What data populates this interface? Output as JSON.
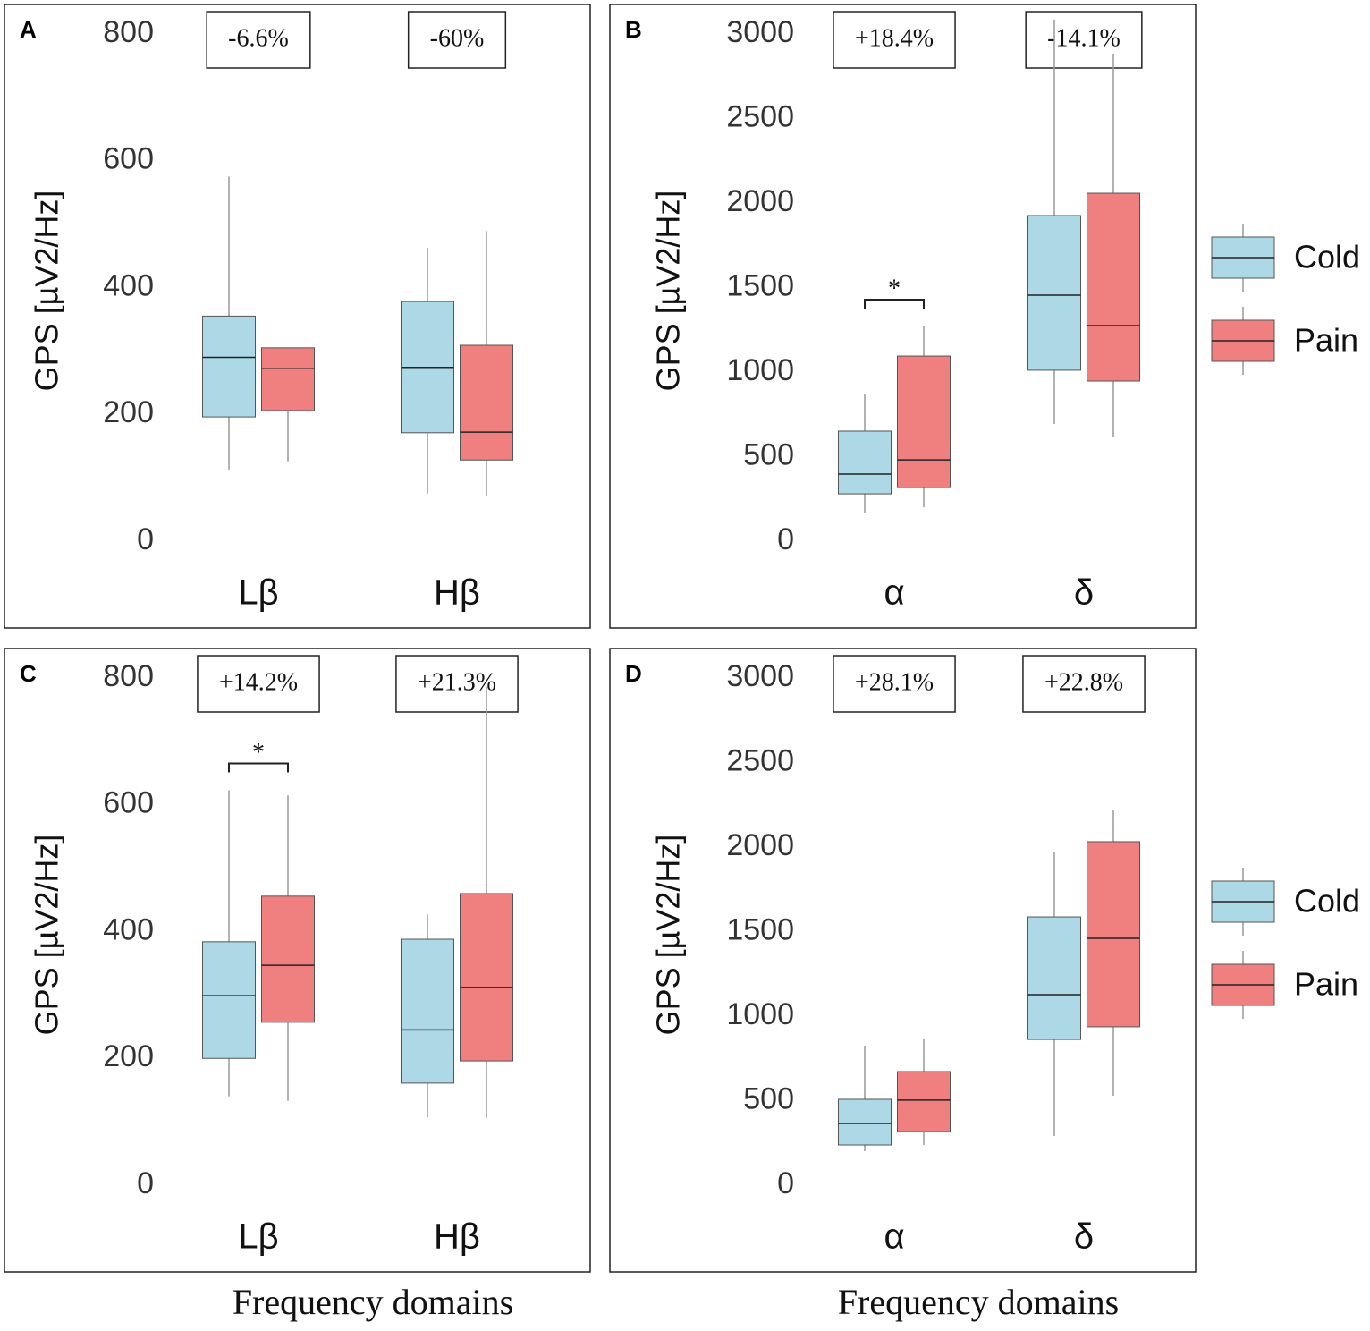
{
  "chart_data": [
    {
      "type": "box",
      "panel": "A",
      "ylabel": "GPS [µV2/Hz]",
      "ylim": [
        0,
        800
      ],
      "yticks": [
        0,
        200,
        400,
        600,
        800
      ],
      "categories": [
        "Lβ",
        "Hβ"
      ],
      "annotations": [
        "-6.6%",
        "-60%"
      ],
      "significance": [
        null,
        null
      ],
      "legend": false,
      "series": [
        {
          "name": "Cold",
          "color": "#add8e6",
          "values": [
            {
              "min": 113,
              "q1": 196,
              "median": 290,
              "q3": 355,
              "max": 575
            },
            {
              "min": 75,
              "q1": 171,
              "median": 274,
              "q3": 378,
              "max": 463
            }
          ]
        },
        {
          "name": "Pain",
          "color": "#f08080",
          "values": [
            {
              "min": 126,
              "q1": 206,
              "median": 272,
              "q3": 305,
              "max": 305
            },
            {
              "min": 72,
              "q1": 128,
              "median": 172,
              "q3": 309,
              "max": 489
            }
          ]
        }
      ]
    },
    {
      "type": "box",
      "panel": "B",
      "ylabel": "GPS [µV2/Hz]",
      "ylim": [
        0,
        3000
      ],
      "yticks": [
        0,
        500,
        1000,
        1500,
        2000,
        2500,
        3000
      ],
      "categories": [
        "α",
        "δ"
      ],
      "annotations": [
        "+18.4%",
        "-14.1%"
      ],
      "significance": [
        "*",
        null
      ],
      "legend": "right",
      "series": [
        {
          "name": "Cold",
          "color": "#add8e6",
          "values": [
            {
              "min": 169,
              "q1": 280,
              "median": 397,
              "q3": 651,
              "max": 873
            },
            {
              "min": 693,
              "q1": 1011,
              "median": 1455,
              "q3": 1926,
              "max": 3085
            }
          ]
        },
        {
          "name": "Pain",
          "color": "#f08080",
          "values": [
            {
              "min": 201,
              "q1": 317,
              "median": 481,
              "q3": 1095,
              "max": 1270
            },
            {
              "min": 619,
              "q1": 947,
              "median": 1275,
              "q3": 2058,
              "max": 2884
            }
          ]
        }
      ]
    },
    {
      "type": "box",
      "panel": "C",
      "ylabel": "GPS [µV2/Hz]",
      "xlabel": "Frequency domains",
      "ylim": [
        0,
        800
      ],
      "yticks": [
        0,
        200,
        400,
        600,
        800
      ],
      "categories": [
        "Lβ",
        "Hβ"
      ],
      "annotations": [
        "+14.2%",
        "+21.3%"
      ],
      "significance": [
        "*",
        null
      ],
      "legend": false,
      "series": [
        {
          "name": "Cold",
          "color": "#add8e6",
          "values": [
            {
              "min": 140,
              "q1": 200,
              "median": 299,
              "q3": 384,
              "max": 623
            },
            {
              "min": 107,
              "q1": 161,
              "median": 245,
              "q3": 388,
              "max": 427
            }
          ]
        },
        {
          "name": "Pain",
          "color": "#f08080",
          "values": [
            {
              "min": 133,
              "q1": 257,
              "median": 347,
              "q3": 456,
              "max": 615
            },
            {
              "min": 106,
              "q1": 196,
              "median": 312,
              "q3": 460,
              "max": 786
            }
          ]
        }
      ]
    },
    {
      "type": "box",
      "panel": "D",
      "ylabel": "GPS [µV2/Hz]",
      "xlabel": "Frequency domains",
      "ylim": [
        0,
        3000
      ],
      "yticks": [
        0,
        500,
        1000,
        1500,
        2000,
        2500,
        3000
      ],
      "categories": [
        "α",
        "δ"
      ],
      "annotations": [
        "+28.1%",
        "+22.8%"
      ],
      "significance": [
        null,
        null
      ],
      "legend": "right",
      "series": [
        {
          "name": "Cold",
          "color": "#add8e6",
          "values": [
            {
              "min": 201,
              "q1": 238,
              "median": 365,
              "q3": 508,
              "max": 825
            },
            {
              "min": 291,
              "q1": 862,
              "median": 1127,
              "q3": 1587,
              "max": 1968
            }
          ]
        },
        {
          "name": "Pain",
          "color": "#f08080",
          "values": [
            {
              "min": 238,
              "q1": 317,
              "median": 503,
              "q3": 672,
              "max": 868
            },
            {
              "min": 529,
              "q1": 937,
              "median": 1460,
              "q3": 2032,
              "max": 2217
            }
          ]
        }
      ]
    }
  ]
}
